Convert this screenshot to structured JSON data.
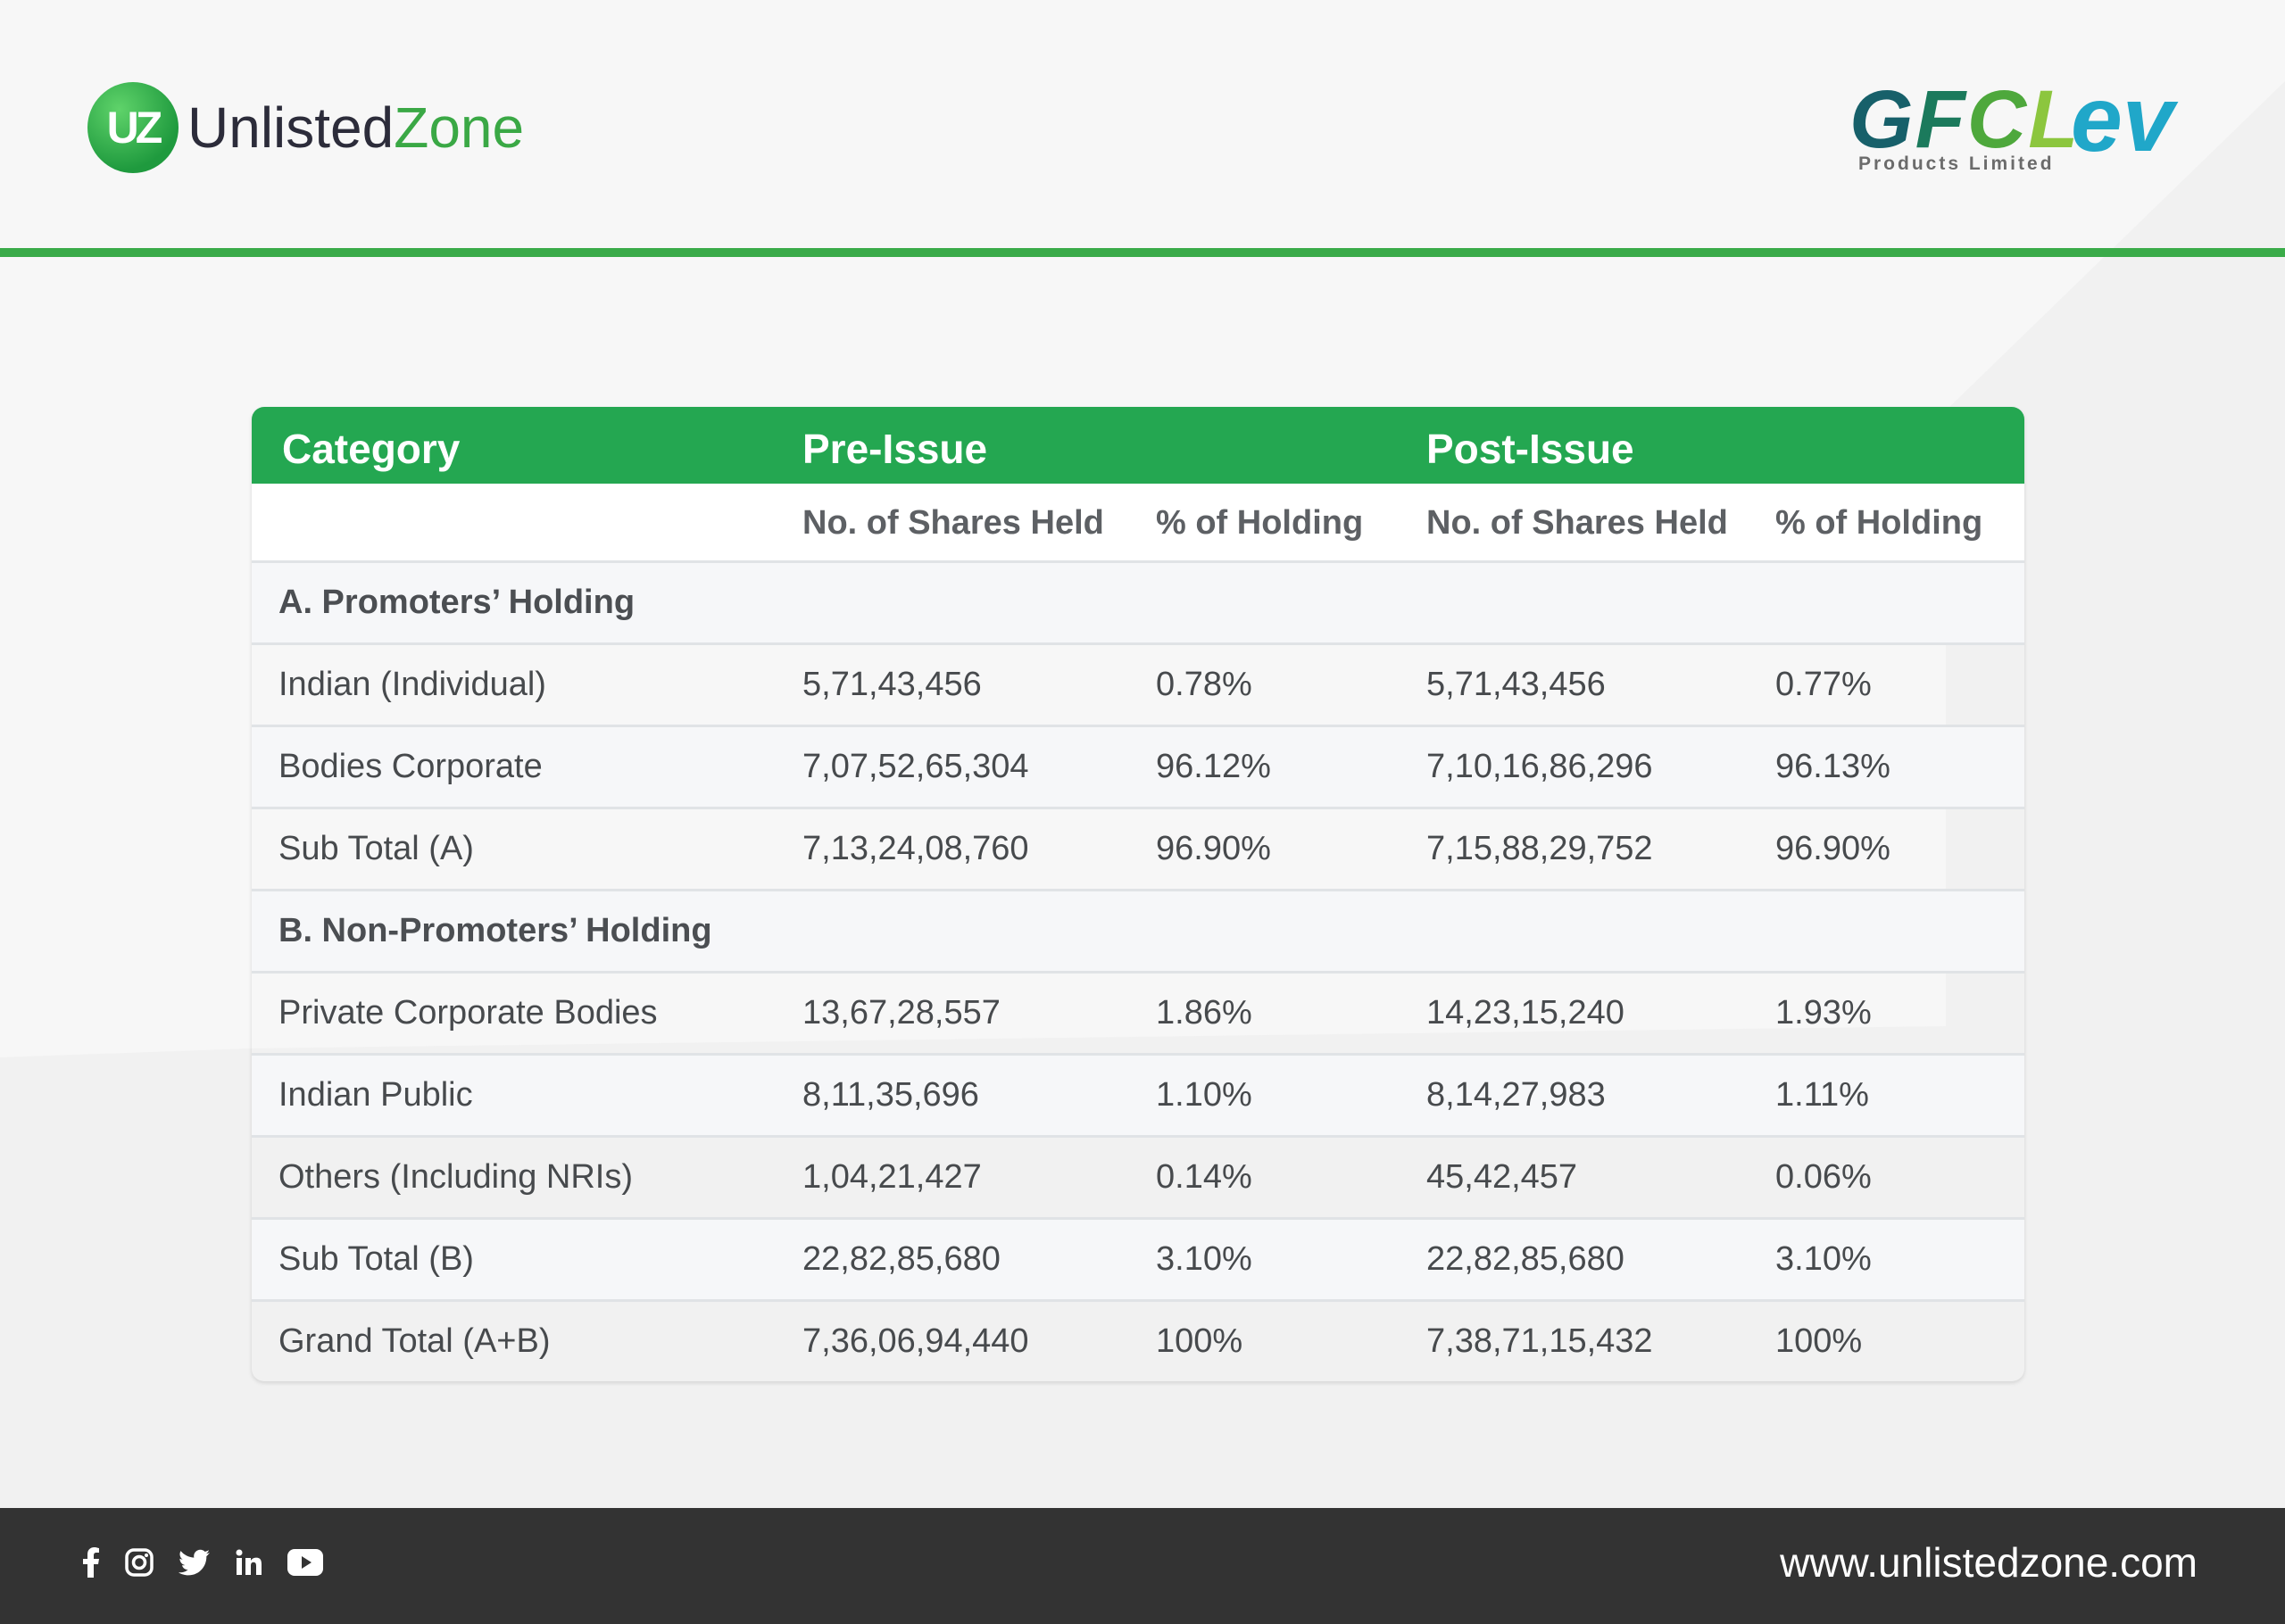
{
  "brand": {
    "mark": "UZ",
    "name_part1": "Unlisted",
    "name_part2": "Zone"
  },
  "partner": {
    "letters": [
      "G",
      "F",
      "C",
      "L"
    ],
    "ev": "ev",
    "subtitle": "Products Limited"
  },
  "table": {
    "headers": {
      "category": "Category",
      "pre": "Pre-Issue",
      "post": "Post-Issue"
    },
    "subheaders": {
      "pre_shares": "No. of Shares Held",
      "pre_pct": "% of Holding",
      "post_shares": "No. of Shares Held",
      "post_pct": "% of Holding"
    },
    "section_a": "A. Promoters’ Holding",
    "rows_a": [
      {
        "category": "Indian (Individual)",
        "pre_shares": "5,71,43,456",
        "pre_pct": "0.78%",
        "post_shares": "5,71,43,456",
        "post_pct": "0.77%"
      },
      {
        "category": "Bodies Corporate",
        "pre_shares": "7,07,52,65,304",
        "pre_pct": "96.12%",
        "post_shares": "7,10,16,86,296",
        "post_pct": "96.13%"
      },
      {
        "category": "Sub Total (A)",
        "pre_shares": "7,13,24,08,760",
        "pre_pct": "96.90%",
        "post_shares": "7,15,88,29,752",
        "post_pct": "96.90%"
      }
    ],
    "section_b": "B. Non-Promoters’ Holding",
    "rows_b": [
      {
        "category": "Private Corporate Bodies",
        "pre_shares": "13,67,28,557",
        "pre_pct": "1.86%",
        "post_shares": "14,23,15,240",
        "post_pct": "1.93%"
      },
      {
        "category": "Indian Public",
        "pre_shares": "8,11,35,696",
        "pre_pct": "1.10%",
        "post_shares": "8,14,27,983",
        "post_pct": "1.11%"
      },
      {
        "category": "Others (Including NRIs)",
        "pre_shares": "1,04,21,427",
        "pre_pct": "0.14%",
        "post_shares": "45,42,457",
        "post_pct": "0.06%"
      },
      {
        "category": "Sub Total (B)",
        "pre_shares": "22,82,85,680",
        "pre_pct": "3.10%",
        "post_shares": "22,82,85,680",
        "post_pct": "3.10%"
      },
      {
        "category": "Grand Total (A+B)",
        "pre_shares": "7,36,06,94,440",
        "pre_pct": "100%",
        "post_shares": "7,38,71,15,432",
        "post_pct": "100%"
      }
    ]
  },
  "footer": {
    "icons": [
      "facebook-icon",
      "instagram-icon",
      "twitter-icon",
      "linkedin-icon",
      "youtube-icon"
    ],
    "website": "www.unlistedzone.com"
  },
  "colors": {
    "accent_green": "#24a751",
    "rule_green": "#3aab49",
    "footer_bg": "#333333"
  }
}
